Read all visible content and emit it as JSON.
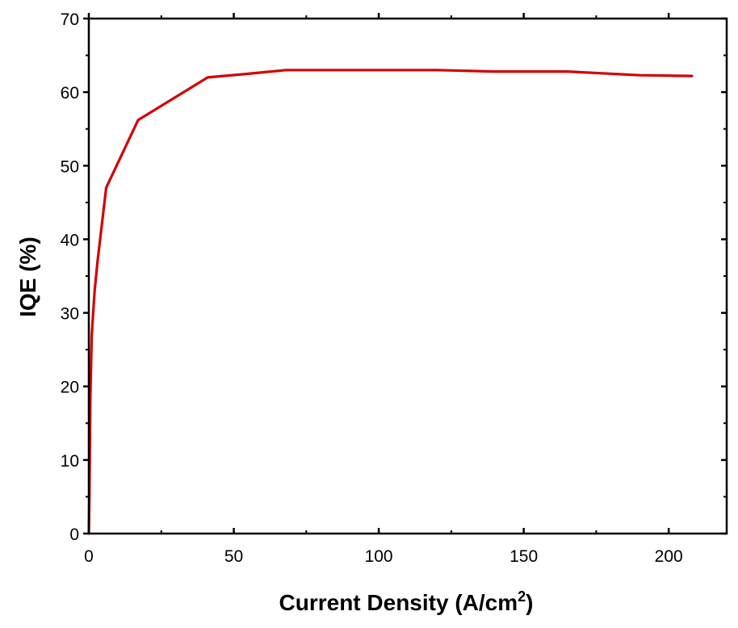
{
  "chart_data": {
    "type": "line",
    "title": "",
    "xlabel": "Current Density (A/cm",
    "xlabel_superscript": "2",
    "xlabel_suffix": ")",
    "ylabel": "IQE (%)",
    "xlim": [
      0,
      220
    ],
    "ylim": [
      0,
      70
    ],
    "x_ticks": [
      0,
      50,
      100,
      150,
      200
    ],
    "y_ticks": [
      0,
      10,
      20,
      30,
      40,
      50,
      60,
      70
    ],
    "x_tick_labels": [
      "0",
      "50",
      "100",
      "150",
      "200"
    ],
    "y_tick_labels": [
      "0",
      "10",
      "20",
      "30",
      "40",
      "50",
      "60",
      "70"
    ],
    "grid": false,
    "line_color": "#d40000",
    "series": [
      {
        "x": [
          0,
          0.2,
          0.5,
          1,
          2,
          3,
          6,
          17,
          41,
          55,
          68,
          90,
          120,
          140,
          165,
          190,
          208
        ],
        "values": [
          0,
          5,
          18,
          27,
          33,
          37,
          47,
          56.2,
          62,
          62.5,
          63,
          63,
          63,
          62.8,
          62.8,
          62.3,
          62.2
        ]
      }
    ]
  }
}
